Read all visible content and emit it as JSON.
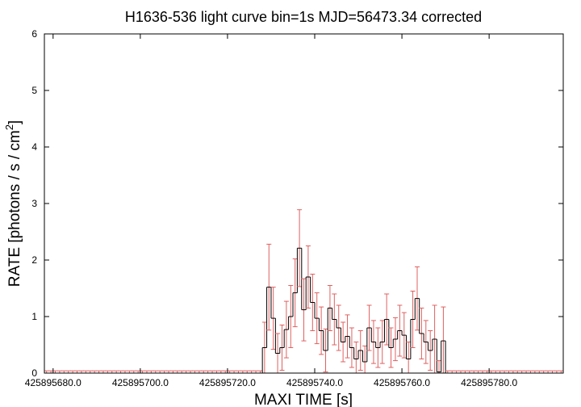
{
  "chart_data": {
    "type": "line",
    "title": "H1636-536 light curve bin=1s MJD=56473.34 corrected",
    "xlabel": "MAXI TIME [s]",
    "ylabel": "RATE [photons / s / cm",
    "ylabel_sup": "2",
    "ylabel_end": "]",
    "xlim": [
      425895678,
      425895797
    ],
    "ylim": [
      0,
      6
    ],
    "x_ticks": [
      425895680,
      425895700,
      425895720,
      425895740,
      425895760,
      425895780
    ],
    "x_tick_labels": [
      "425895680.0",
      "425895700.0",
      "425895720.0",
      "425895740.0",
      "425895760.0",
      "425895780.0"
    ],
    "y_ticks": [
      0,
      1,
      2,
      3,
      4,
      5,
      6
    ],
    "y_tick_labels": [
      "0",
      "1",
      "2",
      "3",
      "4",
      "5",
      "6"
    ],
    "grid": false,
    "series": [
      {
        "x_start": 425895678,
        "bin_width": 1,
        "values": [
          0,
          0,
          0,
          0,
          0,
          0,
          0,
          0,
          0,
          0,
          0,
          0,
          0,
          0,
          0,
          0,
          0,
          0,
          0,
          0,
          0,
          0,
          0,
          0,
          0,
          0,
          0,
          0,
          0,
          0,
          0,
          0,
          0,
          0,
          0,
          0,
          0,
          0,
          0,
          0,
          0,
          0,
          0,
          0,
          0,
          0,
          0,
          0,
          0,
          0,
          0.45,
          1.52,
          0.97,
          0.35,
          0.45,
          0.77,
          1.0,
          1.42,
          2.21,
          1.12,
          1.7,
          1.25,
          0.97,
          0.75,
          0.4,
          1.15,
          0.95,
          0.8,
          0.55,
          0.65,
          0.45,
          0.25,
          0.4,
          0.2,
          0.8,
          0.55,
          0.45,
          0.55,
          0.95,
          0.45,
          0.6,
          0.75,
          0.67,
          0.25,
          0.95,
          1.32,
          0.7,
          0.55,
          0.4,
          0.6,
          0.02,
          0.57,
          0,
          0,
          0,
          0,
          0,
          0,
          0,
          0,
          0,
          0,
          0,
          0,
          0,
          0,
          0,
          0,
          0,
          0,
          0,
          0,
          0,
          0,
          0,
          0,
          0,
          0,
          0
        ],
        "errors": [
          0.04,
          0.04,
          0.04,
          0.04,
          0.04,
          0.04,
          0.04,
          0.04,
          0.04,
          0.04,
          0.04,
          0.04,
          0.04,
          0.04,
          0.04,
          0.04,
          0.04,
          0.04,
          0.04,
          0.04,
          0.04,
          0.04,
          0.04,
          0.04,
          0.04,
          0.04,
          0.04,
          0.04,
          0.04,
          0.04,
          0.04,
          0.04,
          0.04,
          0.04,
          0.04,
          0.04,
          0.04,
          0.04,
          0.04,
          0.04,
          0.04,
          0.04,
          0.04,
          0.04,
          0.04,
          0.04,
          0.04,
          0.04,
          0.04,
          0.04,
          0.45,
          0.76,
          0.55,
          0.35,
          0.4,
          0.5,
          0.55,
          0.6,
          0.68,
          0.55,
          0.55,
          0.5,
          0.45,
          0.42,
          0.38,
          0.4,
          0.45,
          0.4,
          0.35,
          0.38,
          0.35,
          0.3,
          0.35,
          0.28,
          0.4,
          0.38,
          0.35,
          0.38,
          0.45,
          0.35,
          0.38,
          0.45,
          0.4,
          0.3,
          0.5,
          0.56,
          0.45,
          0.38,
          0.35,
          0.6,
          0.2,
          0.6,
          0.04,
          0.04,
          0.04,
          0.04,
          0.04,
          0.04,
          0.04,
          0.04,
          0.04,
          0.04,
          0.04,
          0.04,
          0.04,
          0.04,
          0.04,
          0.04,
          0.04,
          0.04,
          0.04,
          0.04,
          0.04,
          0.04,
          0.04,
          0.04,
          0.04,
          0.04,
          0.04
        ],
        "color": "#e06060",
        "step_color": "#000000"
      }
    ]
  }
}
